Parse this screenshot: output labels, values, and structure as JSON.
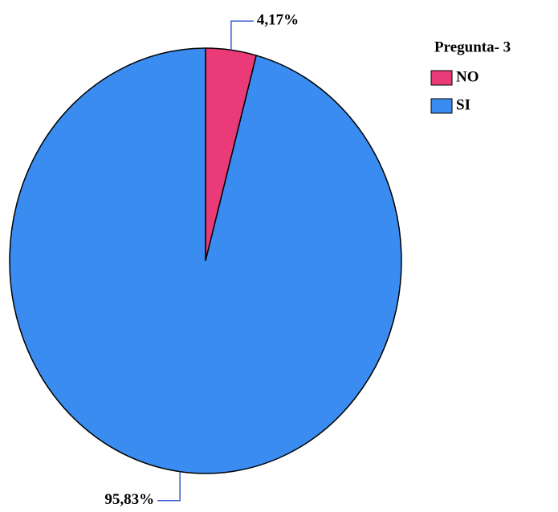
{
  "chart_data": {
    "type": "pie",
    "legend_title": "Pregunta- 3",
    "categories": [
      "NO",
      "SI"
    ],
    "values": [
      4.17,
      95.83
    ],
    "value_labels": [
      "4,17%",
      "95,83%"
    ],
    "colors": [
      "#ea3a78",
      "#3a8cf0"
    ],
    "legend": "top-right"
  }
}
